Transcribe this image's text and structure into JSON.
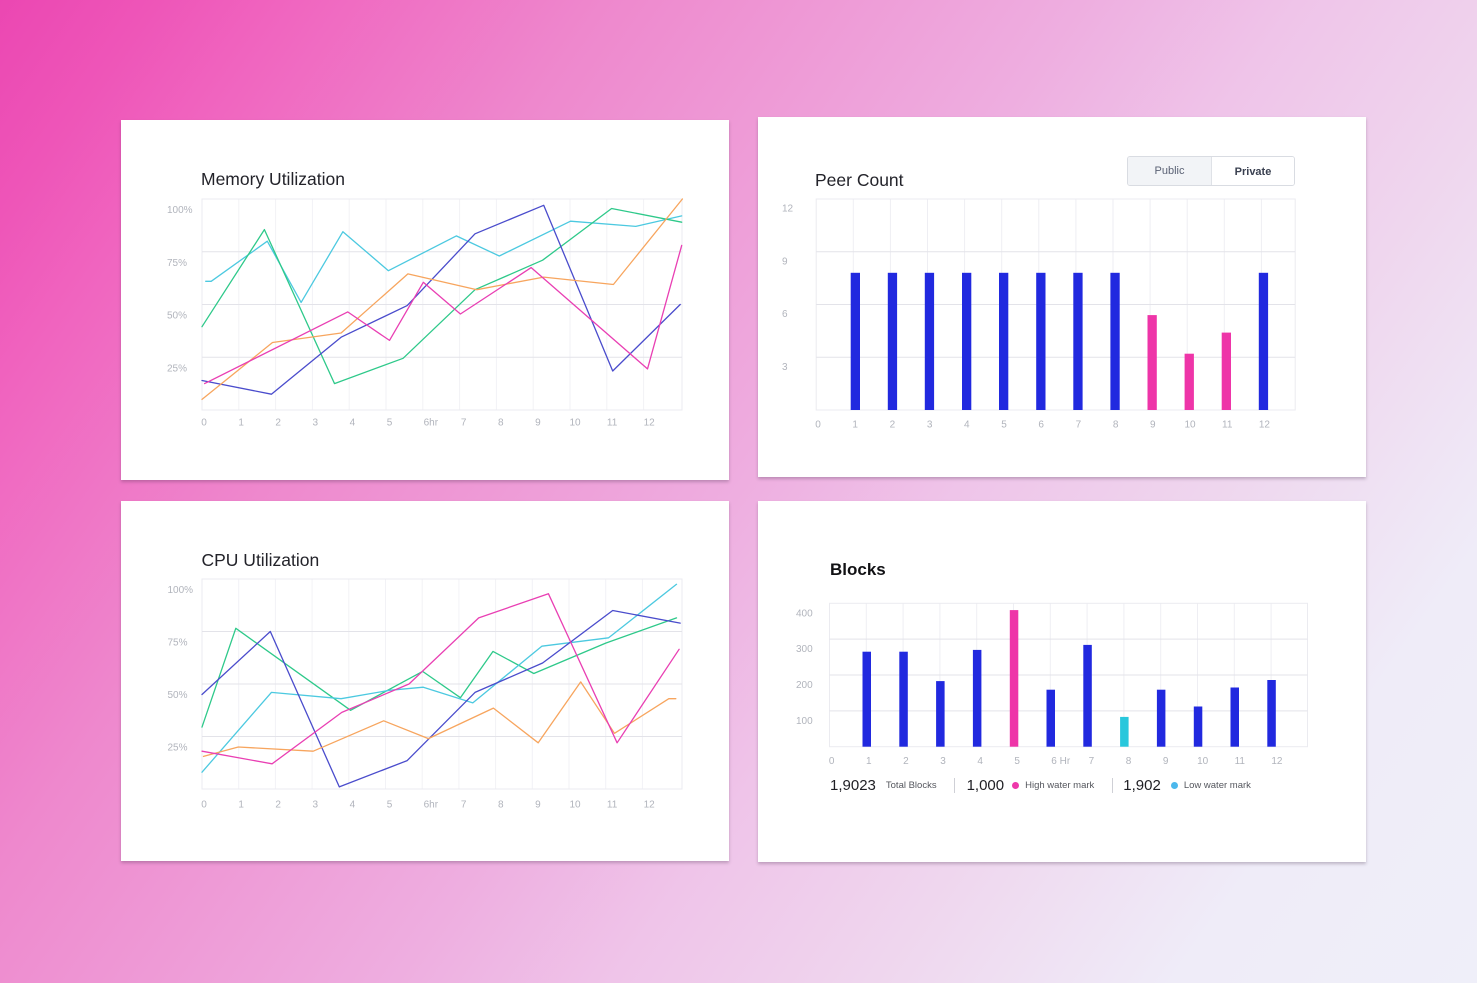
{
  "colors": {
    "bar_primary": "#2129df",
    "bar_highlight": "#ee35a8",
    "bar_low": "#28c7dc",
    "line_cyan": "#4cc9e0",
    "line_green": "#2ec98a",
    "line_indigo": "#4a4ccc",
    "line_orange": "#f7a55e",
    "line_pink": "#e93fb3"
  },
  "cards": {
    "memory": {
      "title": "Memory Utilization"
    },
    "peer": {
      "title": "Peer Count",
      "toggle": {
        "public_label": "Public",
        "private_label": "Private",
        "selected": "Public"
      }
    },
    "cpu": {
      "title": "CPU Utilization"
    },
    "blocks": {
      "title": "Blocks",
      "stats": {
        "total": {
          "value": "1,9023",
          "label": "Total Blocks"
        },
        "high": {
          "value": "1,000",
          "label": "High water mark",
          "color": "#ee38aa"
        },
        "low": {
          "value": "1,902",
          "label": "Low water mark",
          "color": "#4cb8ec"
        }
      }
    }
  },
  "chart_data": [
    {
      "id": "memory",
      "type": "line",
      "title": "Memory Utilization",
      "xlabel": "",
      "ylabel": "",
      "x_tick_labels": [
        "0",
        "1",
        "2",
        "3",
        "4",
        "5",
        "6hr",
        "7",
        "8",
        "9",
        "10",
        "11",
        "12"
      ],
      "y_ticks": [
        100,
        75,
        50,
        25
      ],
      "y_tick_labels": [
        "100%",
        "75%",
        "50%",
        "25%"
      ],
      "xlim": [
        0,
        13
      ],
      "ylim": [
        0,
        100
      ],
      "grid": true,
      "legend": null,
      "series": [
        {
          "name": "cyan",
          "color": "#4cc9e0",
          "points": [
            [
              0.1,
              61
            ],
            [
              0.25,
              61
            ],
            [
              1.78,
              80
            ],
            [
              2.7,
              51
            ],
            [
              3.84,
              84.5
            ],
            [
              5.08,
              66
            ],
            [
              6.93,
              82.5
            ],
            [
              8.1,
              73
            ],
            [
              10.04,
              89.5
            ],
            [
              11.82,
              87
            ],
            [
              13.07,
              92
            ]
          ]
        },
        {
          "name": "green",
          "color": "#2ec98a",
          "points": [
            [
              0,
              39.5
            ],
            [
              1.7,
              85.5
            ],
            [
              3.61,
              12.5
            ],
            [
              5.48,
              24.5
            ],
            [
              7.44,
              57
            ],
            [
              9.28,
              71
            ],
            [
              11.16,
              95.5
            ],
            [
              13.07,
              89
            ]
          ]
        },
        {
          "name": "indigo",
          "color": "#4a4ccc",
          "points": [
            [
              0,
              14
            ],
            [
              1.89,
              7.5
            ],
            [
              3.79,
              34.5
            ],
            [
              5.59,
              49.5
            ],
            [
              7.44,
              83.5
            ],
            [
              9.31,
              97
            ],
            [
              11.19,
              18.5
            ],
            [
              13.03,
              50
            ]
          ]
        },
        {
          "name": "orange",
          "color": "#f7a55e",
          "points": [
            [
              0,
              5
            ],
            [
              1.92,
              32
            ],
            [
              3.79,
              36.5
            ],
            [
              5.61,
              64.5
            ],
            [
              7.49,
              57
            ],
            [
              9.31,
              63
            ],
            [
              11.21,
              59.5
            ],
            [
              13.09,
              100
            ]
          ]
        },
        {
          "name": "pink",
          "color": "#e93fb3",
          "points": [
            [
              0.07,
              12.5
            ],
            [
              3.97,
              46.5
            ],
            [
              5.11,
              33
            ],
            [
              6.03,
              60.5
            ],
            [
              7.04,
              45.5
            ],
            [
              8.97,
              67.5
            ],
            [
              12.14,
              19.5
            ],
            [
              13.07,
              78
            ]
          ]
        }
      ]
    },
    {
      "id": "peer",
      "type": "bar",
      "title": "Peer Count",
      "xlabel": "",
      "ylabel": "",
      "x_tick_labels": [
        "0",
        "1",
        "2",
        "3",
        "4",
        "5",
        "6",
        "7",
        "8",
        "9",
        "10",
        "11",
        "12"
      ],
      "categories": [
        "1",
        "2",
        "3",
        "4",
        "5",
        "6",
        "7",
        "8",
        "9",
        "10",
        "11",
        "12"
      ],
      "values": [
        7.8,
        7.8,
        7.8,
        7.8,
        7.8,
        7.8,
        7.8,
        7.8,
        5.4,
        3.2,
        4.4,
        7.8
      ],
      "bar_colors": [
        "#2129df",
        "#2129df",
        "#2129df",
        "#2129df",
        "#2129df",
        "#2129df",
        "#2129df",
        "#2129df",
        "#ee35a8",
        "#ee35a8",
        "#ee35a8",
        "#2129df"
      ],
      "y_ticks": [
        12,
        9,
        6,
        3
      ],
      "y_tick_labels": [
        "12",
        "9",
        "6",
        "3"
      ],
      "ylim": [
        0,
        12
      ],
      "grid": true,
      "legend": null
    },
    {
      "id": "cpu",
      "type": "line",
      "title": "CPU Utilization",
      "xlabel": "",
      "ylabel": "",
      "x_tick_labels": [
        "0",
        "1",
        "2",
        "3",
        "4",
        "5",
        "6hr",
        "7",
        "8",
        "9",
        "10",
        "11",
        "12"
      ],
      "y_ticks": [
        100,
        75,
        50,
        25
      ],
      "y_tick_labels": [
        "100%",
        "75%",
        "50%",
        "25%"
      ],
      "xlim": [
        0,
        13
      ],
      "ylim": [
        0,
        100
      ],
      "grid": true,
      "legend": null,
      "series": [
        {
          "name": "green",
          "color": "#2ec98a",
          "points": [
            [
              0,
              29.5
            ],
            [
              0.92,
              76.5
            ],
            [
              4.05,
              37.5
            ],
            [
              6.01,
              56
            ],
            [
              7.04,
              43.5
            ],
            [
              7.93,
              65.5
            ],
            [
              9.04,
              55
            ],
            [
              11.0,
              69.5
            ],
            [
              12.93,
              81.5
            ]
          ]
        },
        {
          "name": "cyan",
          "color": "#4cc9e0",
          "points": [
            [
              0,
              8
            ],
            [
              1.89,
              46
            ],
            [
              3.79,
              43
            ],
            [
              5.11,
              47
            ],
            [
              6.03,
              48.5
            ],
            [
              7.38,
              41
            ],
            [
              9.26,
              68
            ],
            [
              11.08,
              72
            ],
            [
              12.93,
              97.5
            ]
          ]
        },
        {
          "name": "indigo",
          "color": "#4a4ccc",
          "points": [
            [
              0,
              45
            ],
            [
              1.86,
              75
            ],
            [
              3.74,
              1
            ],
            [
              5.59,
              13.5
            ],
            [
              7.44,
              46
            ],
            [
              9.28,
              60
            ],
            [
              11.19,
              85
            ],
            [
              13.03,
              79
            ]
          ]
        },
        {
          "name": "orange",
          "color": "#f7a55e",
          "points": [
            [
              0.04,
              15.5
            ],
            [
              0.99,
              20
            ],
            [
              3.03,
              18
            ],
            [
              4.95,
              32.5
            ],
            [
              6.17,
              24
            ],
            [
              7.94,
              38.5
            ],
            [
              9.16,
              22
            ],
            [
              10.32,
              51
            ],
            [
              11.24,
              26.5
            ],
            [
              12.72,
              43
            ],
            [
              12.91,
              43
            ]
          ]
        },
        {
          "name": "pink",
          "color": "#e93fb3",
          "points": [
            [
              0,
              18
            ],
            [
              1.91,
              12
            ],
            [
              3.81,
              36.5
            ],
            [
              5.64,
              50
            ],
            [
              7.54,
              81.5
            ],
            [
              9.44,
              93
            ],
            [
              11.31,
              22
            ],
            [
              13.0,
              66.5
            ]
          ]
        }
      ]
    },
    {
      "id": "blocks",
      "type": "bar",
      "title": "Blocks",
      "xlabel": "",
      "ylabel": "",
      "x_tick_labels": [
        "0",
        "1",
        "2",
        "3",
        "4",
        "5",
        "6 Hr",
        "7",
        "8",
        "9",
        "10",
        "11",
        "12"
      ],
      "categories": [
        "1",
        "2",
        "3",
        "4",
        "5",
        "6",
        "7",
        "8",
        "9",
        "10",
        "11",
        "12"
      ],
      "values": [
        265,
        265,
        183,
        270,
        381,
        159,
        284,
        83,
        159,
        112,
        165,
        186
      ],
      "bar_colors": [
        "#2129df",
        "#2129df",
        "#2129df",
        "#2129df",
        "#ee35a8",
        "#2129df",
        "#2129df",
        "#28c7dc",
        "#2129df",
        "#2129df",
        "#2129df",
        "#2129df"
      ],
      "y_ticks": [
        400,
        300,
        200,
        100
      ],
      "y_tick_labels": [
        "400",
        "300",
        "200",
        "100"
      ],
      "ylim": [
        0,
        400
      ],
      "grid": true,
      "legend": [
        {
          "label": "High water mark",
          "color": "#ee38aa"
        },
        {
          "label": "Low water mark",
          "color": "#4cb8ec"
        }
      ]
    }
  ]
}
